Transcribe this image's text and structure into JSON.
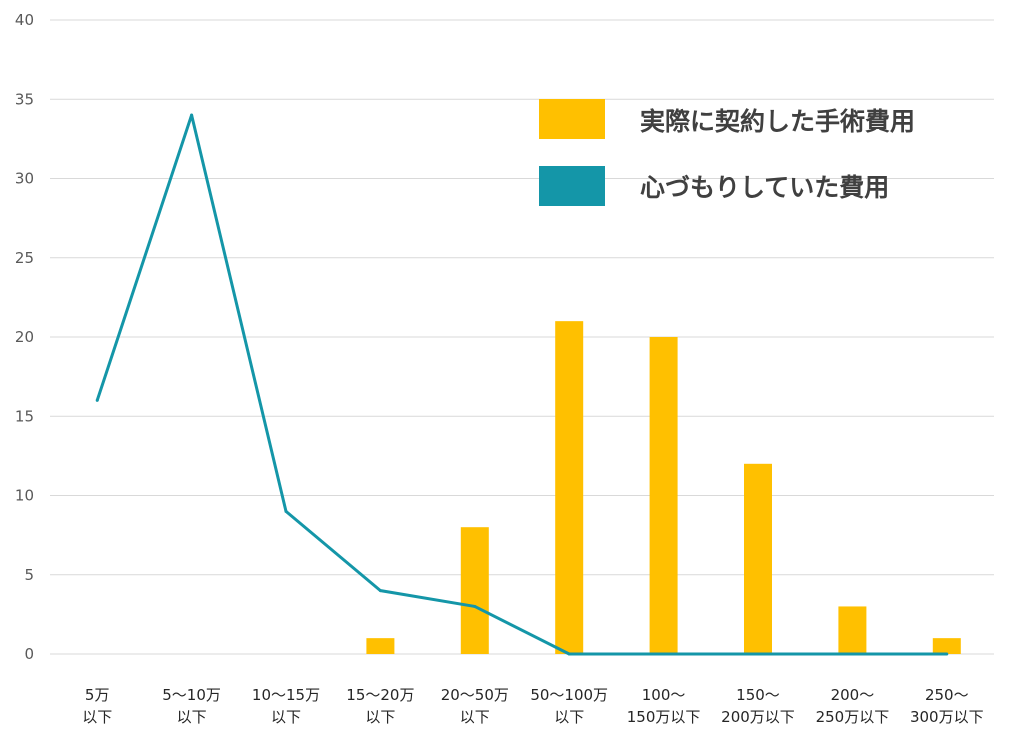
{
  "chart_data": {
    "type": "bar+line",
    "title": "",
    "xlabel": "",
    "ylabel": "",
    "ylim": [
      0,
      40
    ],
    "yticks": [
      0,
      5,
      10,
      15,
      20,
      25,
      30,
      35,
      40
    ],
    "grid": true,
    "legend_position": "top-right",
    "categories": [
      [
        "5万",
        "以下"
      ],
      [
        "5～10万",
        "以下"
      ],
      [
        "10～15万",
        "以下"
      ],
      [
        "15～20万",
        "以下"
      ],
      [
        "20～50万",
        "以下"
      ],
      [
        "50～100万",
        "以下"
      ],
      [
        "100～",
        "150万以下"
      ],
      [
        "150～",
        "200万以下"
      ],
      [
        "200～",
        "250万以下"
      ],
      [
        "250～",
        "300万以下"
      ]
    ],
    "series": [
      {
        "name": "実際に契約した手術費用",
        "type": "bar",
        "color": "#ffc000",
        "values": [
          0,
          0,
          0,
          1,
          8,
          21,
          20,
          12,
          3,
          1
        ]
      },
      {
        "name": "心づもりしていた費用",
        "type": "line",
        "color": "#1496a8",
        "values": [
          16,
          34,
          9,
          4,
          3,
          0,
          0,
          0,
          0,
          0
        ]
      }
    ]
  }
}
